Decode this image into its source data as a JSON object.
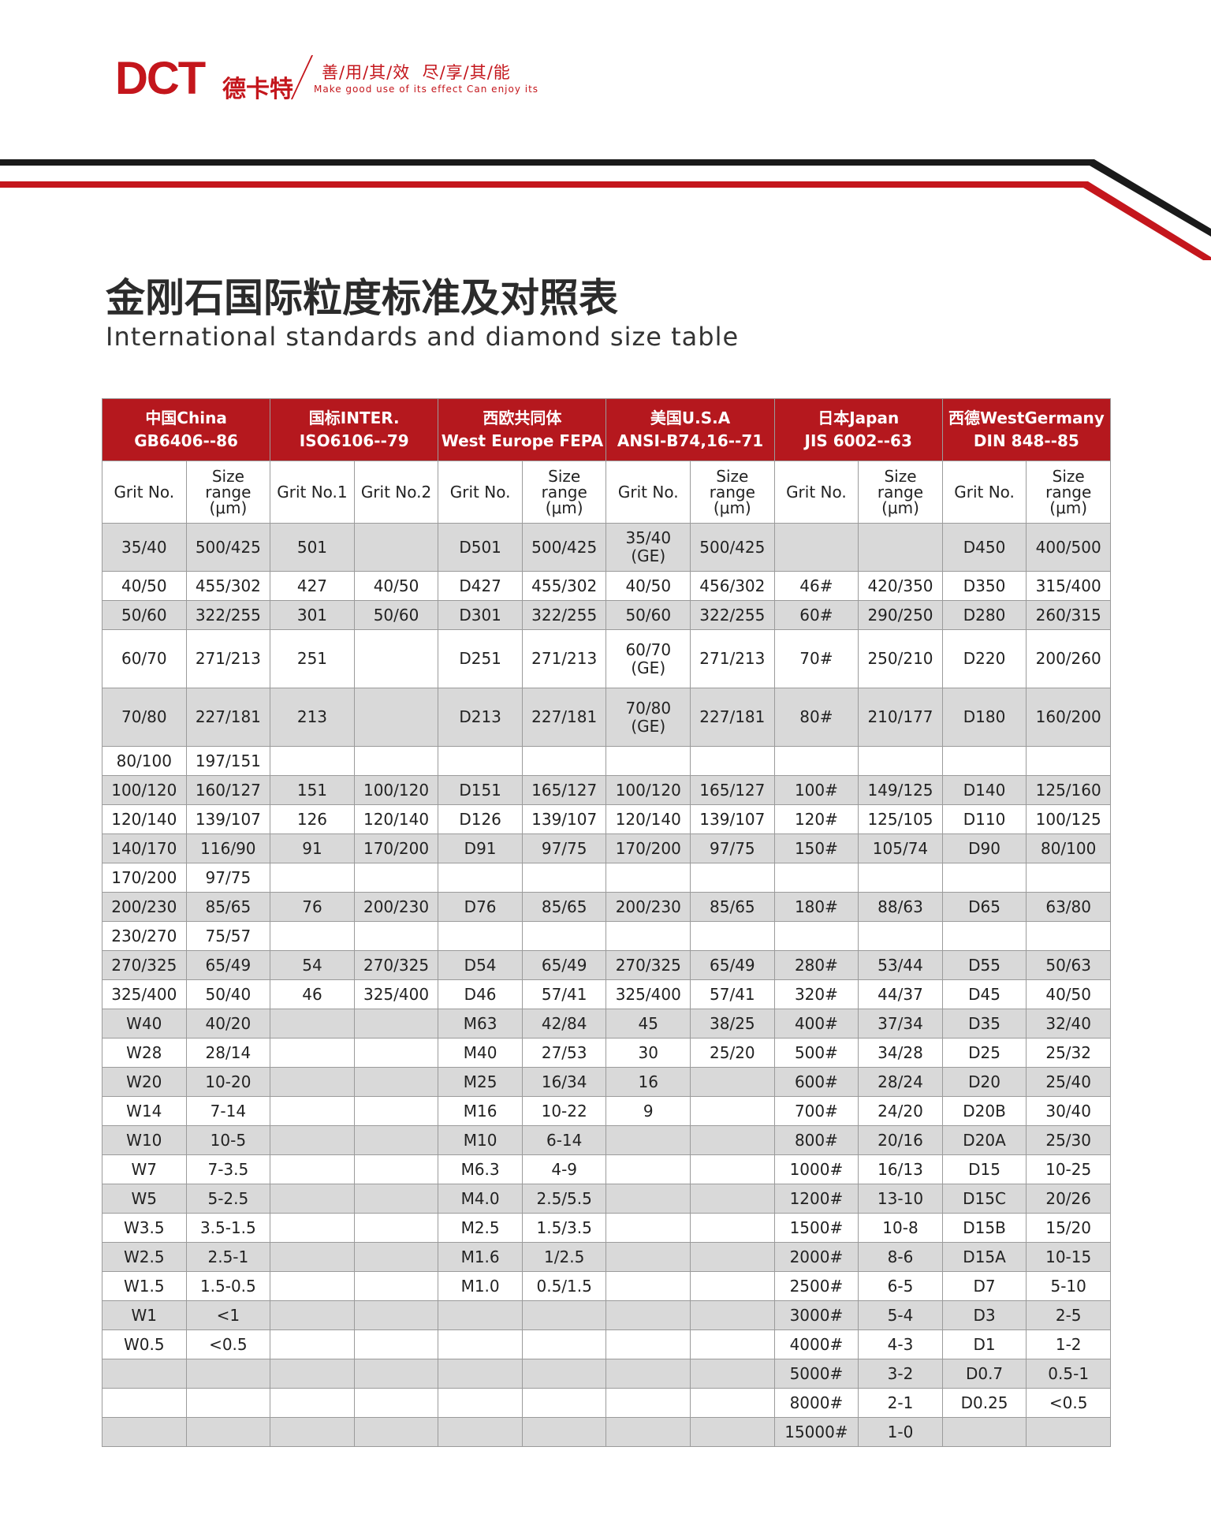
{
  "header": {
    "logo": "DCT",
    "brand": "德卡特",
    "slogan_cn": "善/用/其/效  尽/享/其/能",
    "slogan_en": "Make good use of its effect Can enjoy its"
  },
  "title": "金刚石国际粒度标准及对照表",
  "subtitle": "International standards and diamond size table",
  "table": {
    "groups": [
      {
        "name": "中国China",
        "standard": "GB6406--86"
      },
      {
        "name": "国标INTER.",
        "standard": "ISO6106--79"
      },
      {
        "name": "西欧共同体",
        "standard": "West Europe FEPA"
      },
      {
        "name": "美国U.S.A",
        "standard": "ANSI-B74,16--71"
      },
      {
        "name": "日本Japan",
        "standard": "JIS 6002--63"
      },
      {
        "name": "西德WestGermany",
        "standard": "DIN 848--85"
      }
    ],
    "subheaders": [
      "Grit No.",
      "Size range (μm)",
      "Grit No.1",
      "Grit No.2",
      "Grit No.",
      "Size range (μm)",
      "Grit No.",
      "Size range (μm)",
      "Grit No.",
      "Size range (μm)",
      "Grit No.",
      "Size range (μm)"
    ],
    "rows": [
      [
        "35/40",
        "500/425",
        "501",
        null,
        "D501",
        "500/425",
        "35/40\n(GE)",
        "500/425",
        null,
        null,
        "D450",
        "400/500"
      ],
      [
        "40/50",
        "455/302",
        "427",
        "40/50",
        "D427",
        "455/302",
        "40/50",
        "456/302",
        "46#",
        "420/350",
        "D350",
        "315/400"
      ],
      [
        "50/60",
        "322/255",
        "301",
        "50/60",
        "D301",
        "322/255",
        "50/60",
        "322/255",
        "60#",
        "290/250",
        "D280",
        "260/315"
      ],
      [
        "60/70",
        "271/213",
        "251",
        null,
        "D251",
        "271/213",
        "60/70\n(GE)",
        "271/213",
        "70#",
        "250/210",
        "D220",
        "200/260"
      ],
      [
        "70/80",
        "227/181",
        "213",
        null,
        "D213",
        "227/181",
        "70/80\n(GE)",
        "227/181",
        "80#",
        "210/177",
        "D180",
        "160/200"
      ],
      [
        "80/100",
        "197/151",
        null,
        null,
        null,
        null,
        null,
        null,
        null,
        null,
        null,
        null
      ],
      [
        "100/120",
        "160/127",
        "151",
        "100/120",
        "D151",
        "165/127",
        "100/120",
        "165/127",
        "100#",
        "149/125",
        "D140",
        "125/160"
      ],
      [
        "120/140",
        "139/107",
        "126",
        "120/140",
        "D126",
        "139/107",
        "120/140",
        "139/107",
        "120#",
        "125/105",
        "D110",
        "100/125"
      ],
      [
        "140/170",
        "116/90",
        "91",
        "170/200",
        "D91",
        "97/75",
        "170/200",
        "97/75",
        "150#",
        "105/74",
        "D90",
        "80/100"
      ],
      [
        "170/200",
        "97/75",
        null,
        null,
        null,
        null,
        null,
        null,
        null,
        null,
        null,
        null
      ],
      [
        "200/230",
        "85/65",
        "76",
        "200/230",
        "D76",
        "85/65",
        "200/230",
        "85/65",
        "180#",
        "88/63",
        "D65",
        "63/80"
      ],
      [
        "230/270",
        "75/57",
        null,
        null,
        null,
        null,
        null,
        null,
        null,
        null,
        null,
        null
      ],
      [
        "270/325",
        "65/49",
        "54",
        "270/325",
        "D54",
        "65/49",
        "270/325",
        "65/49",
        "280#",
        "53/44",
        "D55",
        "50/63"
      ],
      [
        "325/400",
        "50/40",
        "46",
        "325/400",
        "D46",
        "57/41",
        "325/400",
        "57/41",
        "320#",
        "44/37",
        "D45",
        "40/50"
      ],
      [
        "W40",
        "40/20",
        null,
        null,
        "M63",
        "42/84",
        "45",
        "38/25",
        "400#",
        "37/34",
        "D35",
        "32/40"
      ],
      [
        "W28",
        "28/14",
        null,
        null,
        "M40",
        "27/53",
        "30",
        "25/20",
        "500#",
        "34/28",
        "D25",
        "25/32"
      ],
      [
        "W20",
        "10-20",
        null,
        null,
        "M25",
        "16/34",
        "16",
        null,
        "600#",
        "28/24",
        "D20",
        "25/40"
      ],
      [
        "W14",
        "7-14",
        null,
        null,
        "M16",
        "10-22",
        "9",
        null,
        "700#",
        "24/20",
        "D20B",
        "30/40"
      ],
      [
        "W10",
        "10-5",
        null,
        null,
        "M10",
        "6-14",
        null,
        null,
        "800#",
        "20/16",
        "D20A",
        "25/30"
      ],
      [
        "W7",
        "7-3.5",
        null,
        null,
        "M6.3",
        "4-9",
        null,
        null,
        "1000#",
        "16/13",
        "D15",
        "10-25"
      ],
      [
        "W5",
        "5-2.5",
        null,
        null,
        "M4.0",
        "2.5/5.5",
        null,
        null,
        "1200#",
        "13-10",
        "D15C",
        "20/26"
      ],
      [
        "W3.5",
        "3.5-1.5",
        null,
        null,
        "M2.5",
        "1.5/3.5",
        null,
        null,
        "1500#",
        "10-8",
        "D15B",
        "15/20"
      ],
      [
        "W2.5",
        "2.5-1",
        null,
        null,
        "M1.6",
        "1/2.5",
        null,
        null,
        "2000#",
        "8-6",
        "D15A",
        "10-15"
      ],
      [
        "W1.5",
        "1.5-0.5",
        null,
        null,
        "M1.0",
        "0.5/1.5",
        null,
        null,
        "2500#",
        "6-5",
        "D7",
        "5-10"
      ],
      [
        "W1",
        "<1",
        null,
        null,
        null,
        null,
        null,
        null,
        "3000#",
        "5-4",
        "D3",
        "2-5"
      ],
      [
        "W0.5",
        "<0.5",
        null,
        null,
        null,
        null,
        null,
        null,
        "4000#",
        "4-3",
        "D1",
        "1-2"
      ],
      [
        null,
        null,
        null,
        null,
        null,
        null,
        null,
        null,
        "5000#",
        "3-2",
        "D0.7",
        "0.5-1"
      ],
      [
        null,
        null,
        null,
        null,
        null,
        null,
        null,
        null,
        "8000#",
        "2-1",
        "D0.25",
        "<0.5"
      ],
      [
        null,
        null,
        null,
        null,
        null,
        null,
        null,
        null,
        "15000#",
        "1-0",
        null,
        null
      ]
    ]
  }
}
